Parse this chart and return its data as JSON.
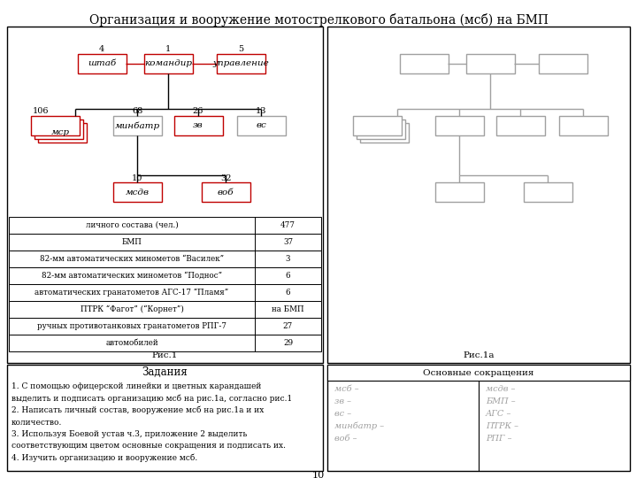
{
  "title_pre": "Организация и вооружение мотострелкового батальона (",
  "title_italic": "мсб",
  "title_post": ") на БМП",
  "left_panel": {
    "table_rows": [
      [
        "личного состава (чел.)",
        "477"
      ],
      [
        "БМП",
        "37"
      ],
      [
        "82-мм автоматических минометов “Василек”",
        "3"
      ],
      [
        "82-мм автоматических минометов “Поднос”",
        "6"
      ],
      [
        "автоматических гранатометов АГС-17 “Пламя”",
        "6"
      ],
      [
        "ПТРК “Фагот” (“Корнет”)",
        "на БМП"
      ],
      [
        "ручных противотанковых гранатометов РПГ-7",
        "27"
      ],
      [
        "автомобилей",
        "29"
      ]
    ],
    "caption": "Рис.1"
  },
  "right_panel": {
    "caption": "Рис.1а"
  },
  "zadaniya_title": "Задания",
  "zadaniya_lines": [
    "1. С помощью офицерской линейки и цветных карандашей",
    "выделить и подписать организацию мсб на рис.1a, согласно рис.1",
    "2. Написать личный состав, вооружение мсб на рис.1a и их",
    "количество.",
    "3. Используя Боевой устав ч.3, приложение 2 выделить",
    "соответствующим цветом основные сокращения и подписать их.",
    "4. Изучить организацию и вооружение мсб."
  ],
  "sokr_title": "Основные сокращения",
  "sokr_left": [
    "мсб –",
    "зв –",
    "вс –",
    "минбатр –",
    "воб –"
  ],
  "sokr_right": [
    "мсдв –",
    "БМП –",
    "АГС –",
    "ПТРК –",
    "РПГ –"
  ],
  "page_num": "10",
  "RED": "#c00000",
  "GRAY": "#a0a0a0",
  "BLACK": "#000000",
  "WHITE": "#ffffff"
}
